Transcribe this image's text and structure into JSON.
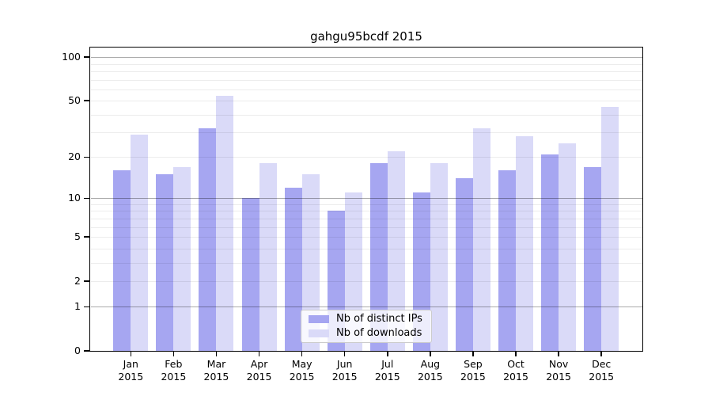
{
  "chart_data": {
    "type": "bar",
    "title": "gahgu95bcdf 2015",
    "year": "2015",
    "categories": [
      "Jan",
      "Feb",
      "Mar",
      "Apr",
      "May",
      "Jun",
      "Jul",
      "Aug",
      "Sep",
      "Oct",
      "Nov",
      "Dec"
    ],
    "series": [
      {
        "name": "Nb of distinct IPs",
        "color": "#a6a6f1",
        "values": [
          16,
          15,
          32,
          10,
          12,
          8,
          18,
          11,
          14,
          16,
          21,
          17
        ]
      },
      {
        "name": "Nb of downloads",
        "color": "#dadaf8",
        "values": [
          29,
          17,
          54,
          18,
          15,
          11,
          22,
          18,
          32,
          28,
          25,
          45
        ]
      }
    ],
    "yticks": [
      0,
      1,
      2,
      5,
      10,
      20,
      50,
      100
    ],
    "ylabel": "",
    "xlabel": "",
    "yscale": "log10(value+1), linear zero at baseline",
    "ylim": [
      0,
      117
    ],
    "grid": "horizontal; minor lines at 2-9, 20-90; darker major lines at 1, 10, 100",
    "legend_position": "lower center, inside axes"
  }
}
